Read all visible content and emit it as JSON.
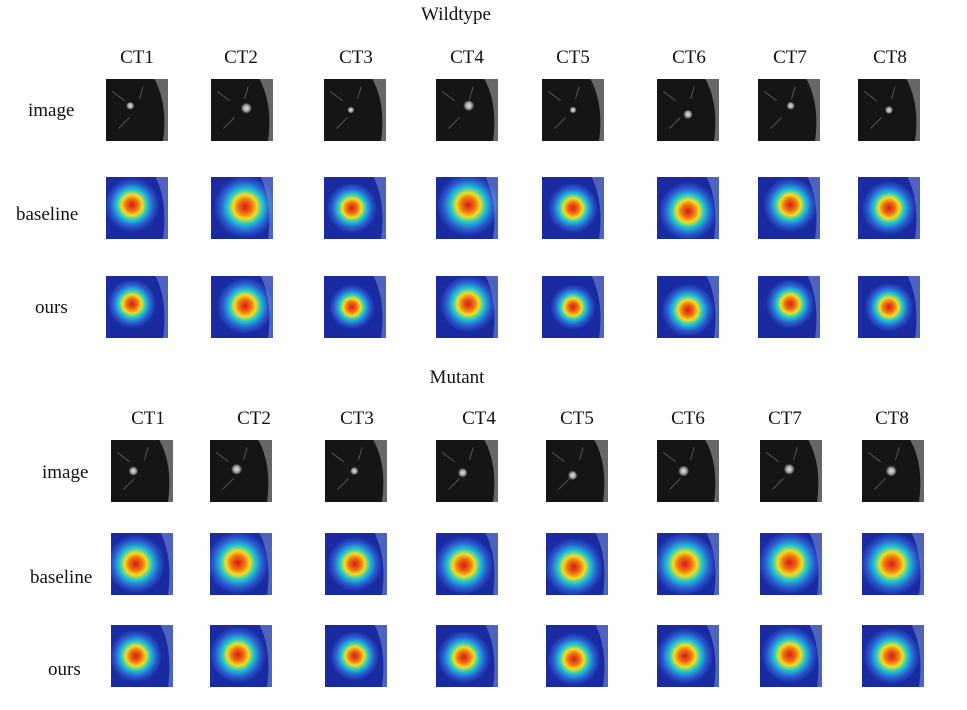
{
  "figure": {
    "panels": [
      {
        "title": "Wildtype",
        "columns": [
          "CT1",
          "CT2",
          "CT3",
          "CT4",
          "CT5",
          "CT6",
          "CT7",
          "CT8"
        ],
        "rows": [
          {
            "label": "image",
            "kind": "ct"
          },
          {
            "label": "baseline",
            "kind": "heatmap"
          },
          {
            "label": "ours",
            "kind": "heatmap"
          }
        ]
      },
      {
        "title": "Mutant",
        "columns": [
          "CT1",
          "CT2",
          "CT3",
          "CT4",
          "CT5",
          "CT6",
          "CT7",
          "CT8"
        ],
        "rows": [
          {
            "label": "image",
            "kind": "ct"
          },
          {
            "label": "baseline",
            "kind": "heatmap"
          },
          {
            "label": "ours",
            "kind": "heatmap"
          }
        ]
      }
    ],
    "colors": {
      "heatmap_low": "#1a2aa0",
      "heatmap_mid": "#20c8d0",
      "heatmap_high": "#d81818",
      "ct_background": "#151515",
      "ct_lesion": "#e8e8e8"
    }
  }
}
